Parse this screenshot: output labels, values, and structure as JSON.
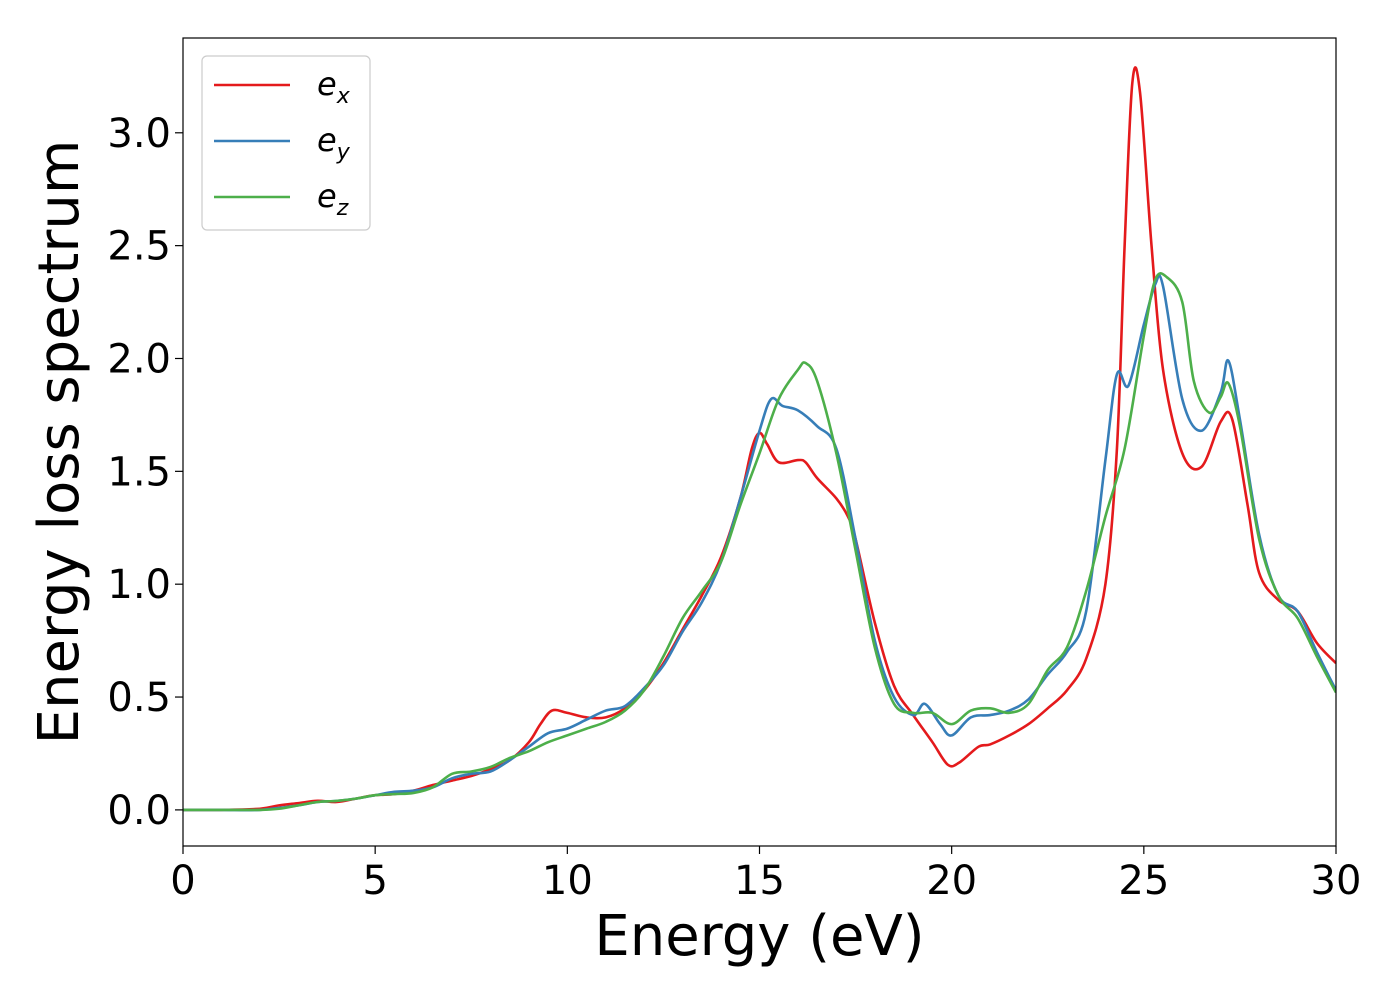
{
  "chart_data": {
    "type": "line",
    "xlabel": "Energy (eV)",
    "ylabel": "Energy loss spectrum",
    "xlim": [
      0,
      30
    ],
    "ylim": [
      -0.16,
      3.42
    ],
    "xticks": [
      0,
      5,
      10,
      15,
      20,
      25,
      30
    ],
    "yticks": [
      0.0,
      0.5,
      1.0,
      1.5,
      2.0,
      2.5,
      3.0
    ],
    "xtick_labels": [
      "0",
      "5",
      "10",
      "15",
      "20",
      "25",
      "30"
    ],
    "ytick_labels": [
      "0.0",
      "0.5",
      "1.0",
      "1.5",
      "2.0",
      "2.5",
      "3.0"
    ],
    "grid": false,
    "legend": "top-left",
    "series": [
      {
        "name": "e",
        "subscript": "x",
        "color": "#e41a1c",
        "points": [
          [
            0,
            0
          ],
          [
            1,
            0
          ],
          [
            2,
            0.005
          ],
          [
            2.5,
            0.02
          ],
          [
            3,
            0.03
          ],
          [
            3.5,
            0.04
          ],
          [
            4,
            0.035
          ],
          [
            4.5,
            0.05
          ],
          [
            5,
            0.065
          ],
          [
            5.5,
            0.07
          ],
          [
            6,
            0.085
          ],
          [
            6.5,
            0.11
          ],
          [
            7,
            0.13
          ],
          [
            7.5,
            0.15
          ],
          [
            8,
            0.18
          ],
          [
            8.5,
            0.22
          ],
          [
            9,
            0.3
          ],
          [
            9.3,
            0.38
          ],
          [
            9.6,
            0.44
          ],
          [
            10,
            0.43
          ],
          [
            10.5,
            0.41
          ],
          [
            11,
            0.41
          ],
          [
            11.5,
            0.45
          ],
          [
            12,
            0.53
          ],
          [
            12.5,
            0.65
          ],
          [
            13,
            0.8
          ],
          [
            13.5,
            0.95
          ],
          [
            14,
            1.12
          ],
          [
            14.5,
            1.38
          ],
          [
            14.8,
            1.6
          ],
          [
            15,
            1.67
          ],
          [
            15.2,
            1.62
          ],
          [
            15.5,
            1.54
          ],
          [
            16,
            1.55
          ],
          [
            16.2,
            1.54
          ],
          [
            16.5,
            1.47
          ],
          [
            17,
            1.38
          ],
          [
            17.3,
            1.3
          ],
          [
            17.5,
            1.2
          ],
          [
            18,
            0.83
          ],
          [
            18.5,
            0.55
          ],
          [
            19,
            0.42
          ],
          [
            19.5,
            0.3
          ],
          [
            19.9,
            0.2
          ],
          [
            20.2,
            0.21
          ],
          [
            20.7,
            0.28
          ],
          [
            21,
            0.29
          ],
          [
            21.5,
            0.33
          ],
          [
            22,
            0.38
          ],
          [
            22.5,
            0.45
          ],
          [
            23,
            0.53
          ],
          [
            23.5,
            0.67
          ],
          [
            24,
            1.0
          ],
          [
            24.3,
            1.6
          ],
          [
            24.5,
            2.5
          ],
          [
            24.7,
            3.22
          ],
          [
            24.9,
            3.18
          ],
          [
            25.2,
            2.5
          ],
          [
            25.5,
            1.95
          ],
          [
            26,
            1.58
          ],
          [
            26.5,
            1.52
          ],
          [
            27,
            1.72
          ],
          [
            27.3,
            1.73
          ],
          [
            27.7,
            1.35
          ],
          [
            28,
            1.05
          ],
          [
            28.5,
            0.93
          ],
          [
            29,
            0.88
          ],
          [
            29.5,
            0.74
          ],
          [
            30,
            0.65
          ]
        ]
      },
      {
        "name": "e",
        "subscript": "y",
        "color": "#377eb8",
        "points": [
          [
            0,
            0
          ],
          [
            1,
            0
          ],
          [
            2,
            0
          ],
          [
            3,
            0.02
          ],
          [
            3.5,
            0.035
          ],
          [
            4,
            0.04
          ],
          [
            4.5,
            0.05
          ],
          [
            5,
            0.065
          ],
          [
            5.5,
            0.08
          ],
          [
            6,
            0.085
          ],
          [
            6.5,
            0.1
          ],
          [
            7,
            0.14
          ],
          [
            7.5,
            0.16
          ],
          [
            8,
            0.17
          ],
          [
            8.5,
            0.22
          ],
          [
            9,
            0.28
          ],
          [
            9.5,
            0.34
          ],
          [
            10,
            0.36
          ],
          [
            10.5,
            0.4
          ],
          [
            11,
            0.44
          ],
          [
            11.5,
            0.46
          ],
          [
            12,
            0.54
          ],
          [
            12.5,
            0.64
          ],
          [
            13,
            0.79
          ],
          [
            13.5,
            0.92
          ],
          [
            14,
            1.1
          ],
          [
            14.5,
            1.38
          ],
          [
            15,
            1.68
          ],
          [
            15.3,
            1.82
          ],
          [
            15.6,
            1.79
          ],
          [
            16,
            1.77
          ],
          [
            16.5,
            1.7
          ],
          [
            17,
            1.6
          ],
          [
            17.5,
            1.2
          ],
          [
            18,
            0.75
          ],
          [
            18.5,
            0.5
          ],
          [
            19,
            0.42
          ],
          [
            19.3,
            0.47
          ],
          [
            19.7,
            0.38
          ],
          [
            20,
            0.33
          ],
          [
            20.5,
            0.41
          ],
          [
            21,
            0.42
          ],
          [
            21.5,
            0.44
          ],
          [
            22,
            0.49
          ],
          [
            22.5,
            0.6
          ],
          [
            23,
            0.7
          ],
          [
            23.5,
            0.88
          ],
          [
            24,
            1.55
          ],
          [
            24.3,
            1.93
          ],
          [
            24.6,
            1.88
          ],
          [
            25,
            2.15
          ],
          [
            25.3,
            2.33
          ],
          [
            25.5,
            2.32
          ],
          [
            26,
            1.82
          ],
          [
            26.5,
            1.68
          ],
          [
            27,
            1.85
          ],
          [
            27.2,
            1.99
          ],
          [
            27.5,
            1.73
          ],
          [
            28,
            1.22
          ],
          [
            28.5,
            0.95
          ],
          [
            29,
            0.88
          ],
          [
            29.5,
            0.7
          ],
          [
            30,
            0.53
          ]
        ]
      },
      {
        "name": "e",
        "subscript": "z",
        "color": "#4daf4a",
        "points": [
          [
            0,
            0
          ],
          [
            1,
            0
          ],
          [
            2,
            0
          ],
          [
            2.5,
            0.005
          ],
          [
            3,
            0.02
          ],
          [
            3.5,
            0.035
          ],
          [
            4,
            0.04
          ],
          [
            4.5,
            0.05
          ],
          [
            5,
            0.065
          ],
          [
            5.5,
            0.07
          ],
          [
            6,
            0.075
          ],
          [
            6.5,
            0.1
          ],
          [
            7,
            0.16
          ],
          [
            7.5,
            0.17
          ],
          [
            8,
            0.19
          ],
          [
            8.5,
            0.23
          ],
          [
            9,
            0.26
          ],
          [
            9.5,
            0.3
          ],
          [
            10,
            0.33
          ],
          [
            10.5,
            0.36
          ],
          [
            11,
            0.39
          ],
          [
            11.5,
            0.44
          ],
          [
            12,
            0.53
          ],
          [
            12.5,
            0.68
          ],
          [
            13,
            0.85
          ],
          [
            13.5,
            0.97
          ],
          [
            14,
            1.1
          ],
          [
            14.5,
            1.35
          ],
          [
            15,
            1.58
          ],
          [
            15.5,
            1.82
          ],
          [
            16,
            1.95
          ],
          [
            16.2,
            1.98
          ],
          [
            16.5,
            1.9
          ],
          [
            17,
            1.58
          ],
          [
            17.5,
            1.15
          ],
          [
            18,
            0.72
          ],
          [
            18.5,
            0.47
          ],
          [
            19,
            0.43
          ],
          [
            19.5,
            0.43
          ],
          [
            20,
            0.38
          ],
          [
            20.5,
            0.44
          ],
          [
            21,
            0.45
          ],
          [
            21.5,
            0.43
          ],
          [
            22,
            0.47
          ],
          [
            22.5,
            0.62
          ],
          [
            23,
            0.72
          ],
          [
            23.5,
            0.97
          ],
          [
            24,
            1.3
          ],
          [
            24.5,
            1.6
          ],
          [
            25,
            2.1
          ],
          [
            25.3,
            2.35
          ],
          [
            25.6,
            2.36
          ],
          [
            26,
            2.25
          ],
          [
            26.3,
            1.9
          ],
          [
            26.7,
            1.76
          ],
          [
            27,
            1.83
          ],
          [
            27.2,
            1.89
          ],
          [
            27.5,
            1.7
          ],
          [
            28,
            1.2
          ],
          [
            28.5,
            0.95
          ],
          [
            29,
            0.85
          ],
          [
            29.5,
            0.68
          ],
          [
            30,
            0.52
          ]
        ]
      }
    ]
  }
}
